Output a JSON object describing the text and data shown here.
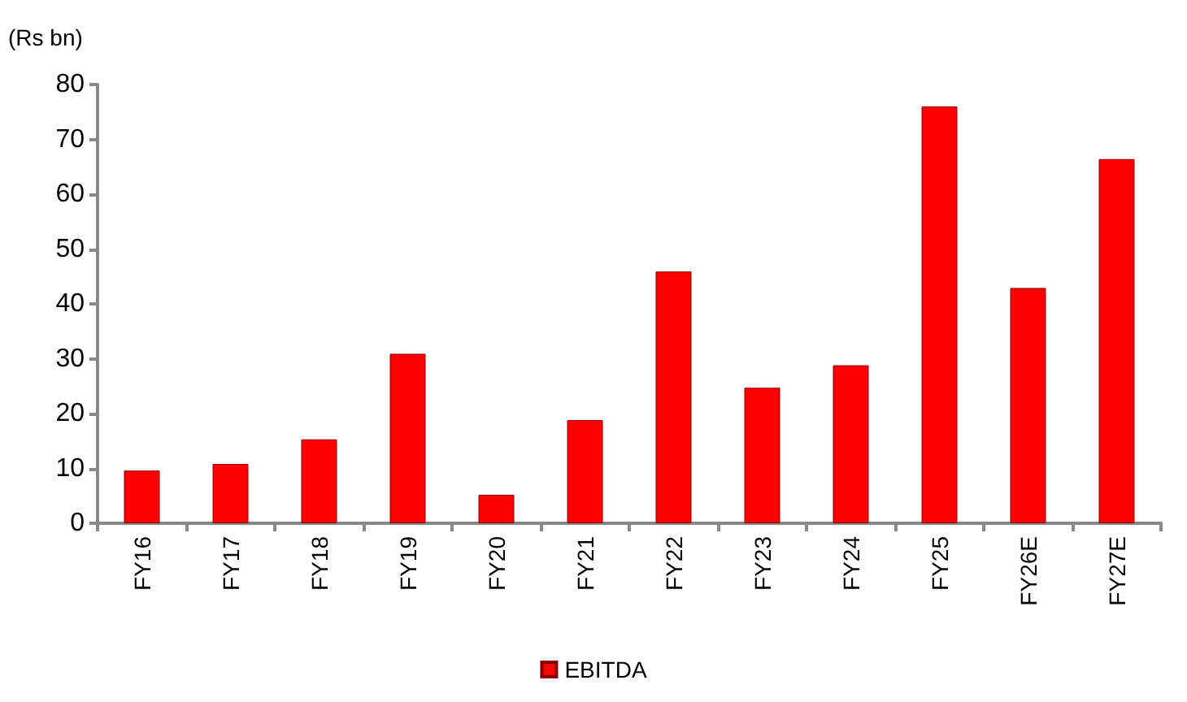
{
  "chart_data": {
    "type": "bar",
    "ylabel": "(Rs bn)",
    "categories": [
      "FY16",
      "FY17",
      "FY18",
      "FY19",
      "FY20",
      "FY21",
      "FY22",
      "FY23",
      "FY24",
      "FY25",
      "FY26E",
      "FY27E"
    ],
    "series": [
      {
        "name": "EBITDA",
        "color": "#ff0000",
        "values": [
          9.6,
          10.8,
          15.3,
          30.9,
          5.2,
          18.8,
          45.9,
          24.7,
          28.8,
          76.0,
          42.9,
          66.4
        ]
      }
    ],
    "ylim": [
      0,
      80
    ],
    "yticks": [
      0,
      10,
      20,
      30,
      40,
      50,
      60,
      70,
      80
    ],
    "grid": false,
    "legend": "bottom"
  }
}
